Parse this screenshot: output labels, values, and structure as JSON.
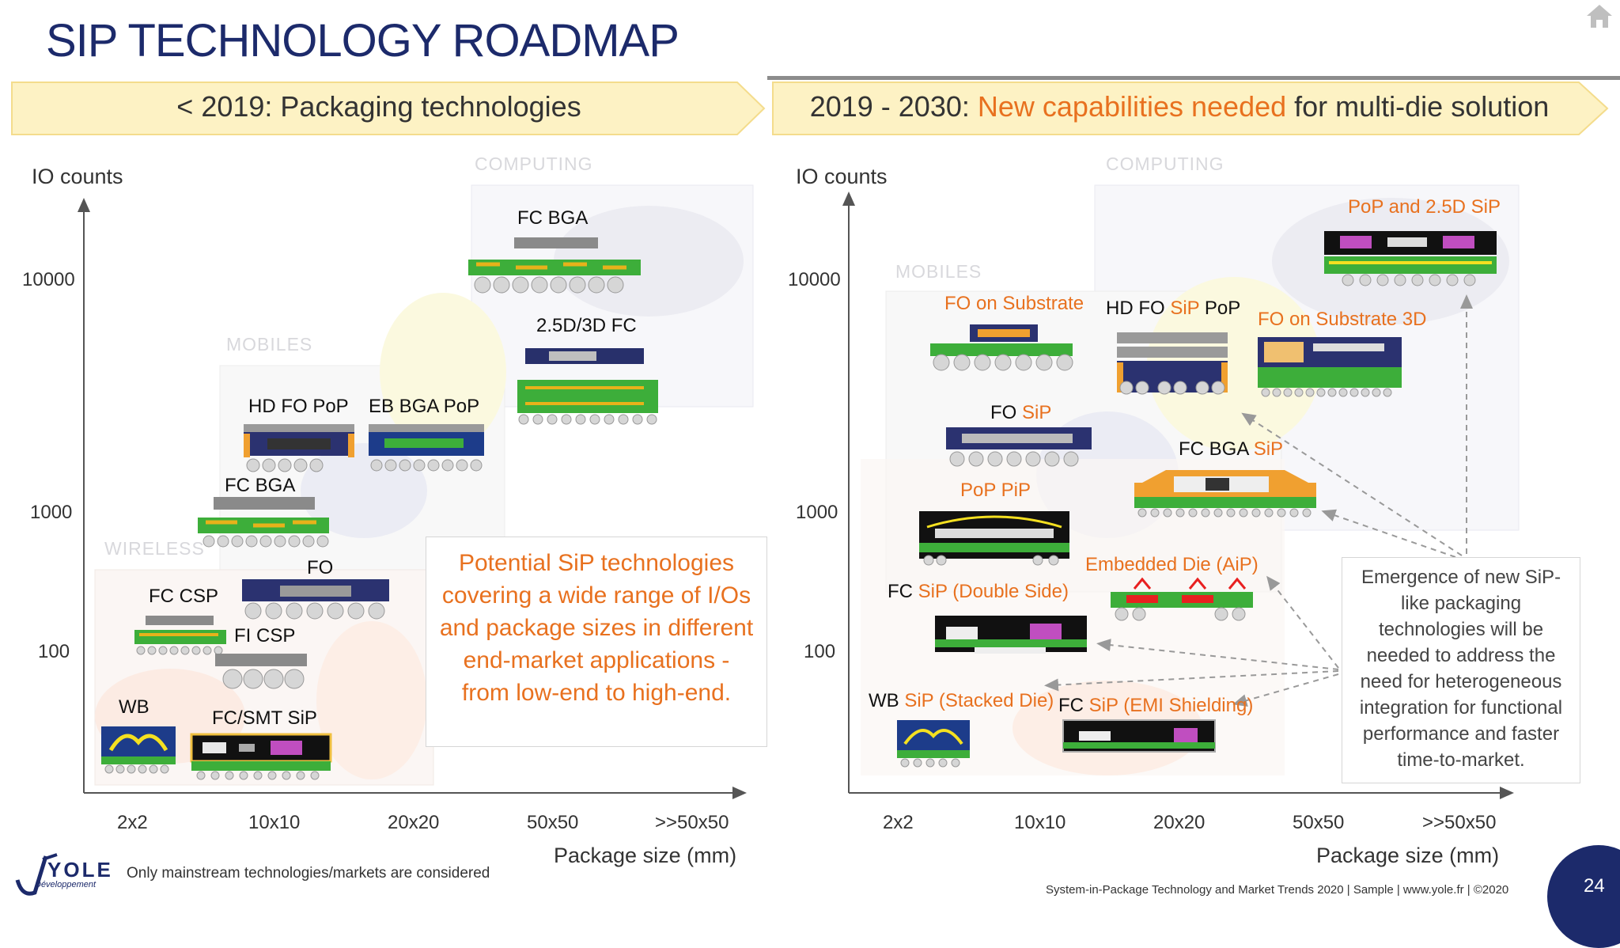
{
  "title": "SIP TECHNOLOGY ROADMAP",
  "left": {
    "banner_prefix": "< 2019: ",
    "banner_text": "Packaging technologies",
    "y_axis": "IO counts",
    "y_ticks": [
      "10000",
      "1000",
      "100"
    ],
    "x_ticks": [
      "2x2",
      "10x10",
      "20x20",
      "50x50",
      ">>50x50"
    ],
    "x_axis": "Package size (mm)",
    "regions": [
      "COMPUTING",
      "MOBILES",
      "WIRELESS"
    ],
    "labels": {
      "fc_bga_top": "FC BGA",
      "d25_3d_fc": "2.5D/3D FC",
      "hd_fo_pop": "HD FO PoP",
      "eb_bga_pop": "EB BGA PoP",
      "fc_bga": "FC BGA",
      "fo": "FO",
      "fc_csp": "FC CSP",
      "fi_csp": "FI CSP",
      "wb": "WB",
      "fc_smt_sip": "FC/SMT SiP"
    },
    "callout": "Potential SiP technologies covering a wide range of I/Os and package sizes in different end-market applications - from low-end to high-end."
  },
  "right": {
    "banner_prefix": "2019 - 2030: ",
    "banner_highlight": "New capabilities needed",
    "banner_suffix": " for multi-die solution",
    "y_axis": "IO counts",
    "y_ticks": [
      "10000",
      "1000",
      "100"
    ],
    "x_ticks": [
      "2x2",
      "10x10",
      "20x20",
      "50x50",
      ">>50x50"
    ],
    "x_axis": "Package size (mm)",
    "regions": [
      "COMPUTING",
      "MOBILES"
    ],
    "labels": {
      "pop_25d_sip": "PoP and 2.5D SiP",
      "fo_on_substrate": "FO on Substrate",
      "hd_fo": "HD FO ",
      "sip": "SiP",
      "pop": " PoP",
      "fo_on_substrate_3d": "FO on Substrate 3D",
      "fo": "FO ",
      "fc_bga": "FC BGA ",
      "pop_pip": "PoP PiP",
      "embedded_die": "Embedded Die (AiP)",
      "fc": "FC ",
      "double_side": "SiP (Double Side)",
      "wb": "WB ",
      "stacked_die": "SiP (Stacked Die)",
      "emi": "SiP (EMI Shielding)"
    },
    "callout": "Emergence of new SiP-like packaging technologies will be needed to address the need for heterogeneous integration for functional performance and faster time-to-market."
  },
  "footer": {
    "brand": "YOLE",
    "brand_sub": "Développement",
    "note": "Only mainstream technologies/markets are considered",
    "credit": "System-in-Package Technology and Market Trends 2020 | Sample | www.yole.fr | ©2020",
    "page": "24"
  },
  "colors": {
    "navy": "#1c2a6b",
    "orange": "#e8711f",
    "banner": "#fdf2c4",
    "substrate": "#3dae3a"
  }
}
